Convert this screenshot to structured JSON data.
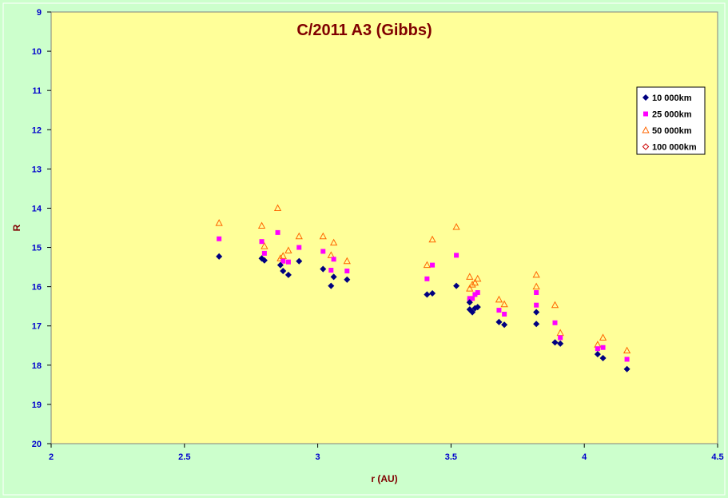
{
  "chart_data": {
    "type": "scatter",
    "title": "C/2011 A3 (Gibbs)",
    "xlabel": "r (AU)",
    "ylabel": "R",
    "xlim": [
      2,
      4.5
    ],
    "ylim": [
      9,
      20
    ],
    "y_inverted": true,
    "x_ticks": [
      "2",
      "2.5",
      "3",
      "3.5",
      "4",
      "4.5"
    ],
    "y_ticks": [
      "9",
      "10",
      "11",
      "12",
      "13",
      "14",
      "15",
      "16",
      "17",
      "18",
      "19",
      "20"
    ],
    "grid": false,
    "legend_position": "top-right",
    "colors": {
      "page_background": "#ccffcc",
      "plot_background": "#ffff99",
      "title": "#800000",
      "axis_title": "#800000",
      "tick_labels": "#0000cc"
    },
    "series": [
      {
        "name": "10 000km",
        "marker": "diamond",
        "color": "#000080",
        "points": [
          [
            2.63,
            15.23
          ],
          [
            2.79,
            15.28
          ],
          [
            2.8,
            15.33
          ],
          [
            2.86,
            15.45
          ],
          [
            2.87,
            15.6
          ],
          [
            2.89,
            15.7
          ],
          [
            2.93,
            15.35
          ],
          [
            3.02,
            15.55
          ],
          [
            3.05,
            15.98
          ],
          [
            3.06,
            15.75
          ],
          [
            3.11,
            15.82
          ],
          [
            3.41,
            16.2
          ],
          [
            3.43,
            16.17
          ],
          [
            3.52,
            15.98
          ],
          [
            3.57,
            16.4
          ],
          [
            3.57,
            16.58
          ],
          [
            3.58,
            16.65
          ],
          [
            3.59,
            16.55
          ],
          [
            3.6,
            16.52
          ],
          [
            3.68,
            16.9
          ],
          [
            3.7,
            16.97
          ],
          [
            3.82,
            16.65
          ],
          [
            3.82,
            16.95
          ],
          [
            3.89,
            17.42
          ],
          [
            3.91,
            17.45
          ],
          [
            4.05,
            17.72
          ],
          [
            4.07,
            17.82
          ],
          [
            4.16,
            18.1
          ]
        ]
      },
      {
        "name": "25 000km",
        "marker": "square",
        "color": "#ff00ff",
        "points": [
          [
            2.63,
            14.78
          ],
          [
            2.79,
            14.85
          ],
          [
            2.8,
            15.15
          ],
          [
            2.85,
            14.62
          ],
          [
            2.87,
            15.35
          ],
          [
            2.89,
            15.37
          ],
          [
            2.93,
            15.0
          ],
          [
            3.02,
            15.1
          ],
          [
            3.05,
            15.58
          ],
          [
            3.06,
            15.3
          ],
          [
            3.11,
            15.6
          ],
          [
            3.41,
            15.8
          ],
          [
            3.43,
            15.45
          ],
          [
            3.52,
            15.2
          ],
          [
            3.57,
            16.35
          ],
          [
            3.57,
            16.3
          ],
          [
            3.58,
            16.3
          ],
          [
            3.59,
            16.2
          ],
          [
            3.6,
            16.15
          ],
          [
            3.68,
            16.6
          ],
          [
            3.7,
            16.7
          ],
          [
            3.82,
            16.15
          ],
          [
            3.82,
            16.47
          ],
          [
            3.89,
            16.92
          ],
          [
            3.91,
            17.3
          ],
          [
            4.05,
            17.58
          ],
          [
            4.07,
            17.55
          ],
          [
            4.16,
            17.85
          ]
        ]
      },
      {
        "name": "50 000km",
        "marker": "triangle",
        "color": "#ff6600",
        "points": [
          [
            2.63,
            14.38
          ],
          [
            2.79,
            14.45
          ],
          [
            2.8,
            14.97
          ],
          [
            2.85,
            14.0
          ],
          [
            2.86,
            15.28
          ],
          [
            2.87,
            15.22
          ],
          [
            2.89,
            15.08
          ],
          [
            2.93,
            14.72
          ],
          [
            3.02,
            14.72
          ],
          [
            3.05,
            15.2
          ],
          [
            3.06,
            14.88
          ],
          [
            3.11,
            15.35
          ],
          [
            3.41,
            15.45
          ],
          [
            3.43,
            14.8
          ],
          [
            3.52,
            14.48
          ],
          [
            3.57,
            15.75
          ],
          [
            3.57,
            16.05
          ],
          [
            3.58,
            15.95
          ],
          [
            3.59,
            15.9
          ],
          [
            3.6,
            15.8
          ],
          [
            3.68,
            16.33
          ],
          [
            3.7,
            16.45
          ],
          [
            3.82,
            15.7
          ],
          [
            3.82,
            16.0
          ],
          [
            3.89,
            16.47
          ],
          [
            3.91,
            17.18
          ],
          [
            4.05,
            17.48
          ],
          [
            4.07,
            17.3
          ],
          [
            4.16,
            17.63
          ]
        ]
      },
      {
        "name": "100 000km",
        "marker": "diamond-open",
        "color": "#cc0000",
        "points": []
      }
    ]
  }
}
